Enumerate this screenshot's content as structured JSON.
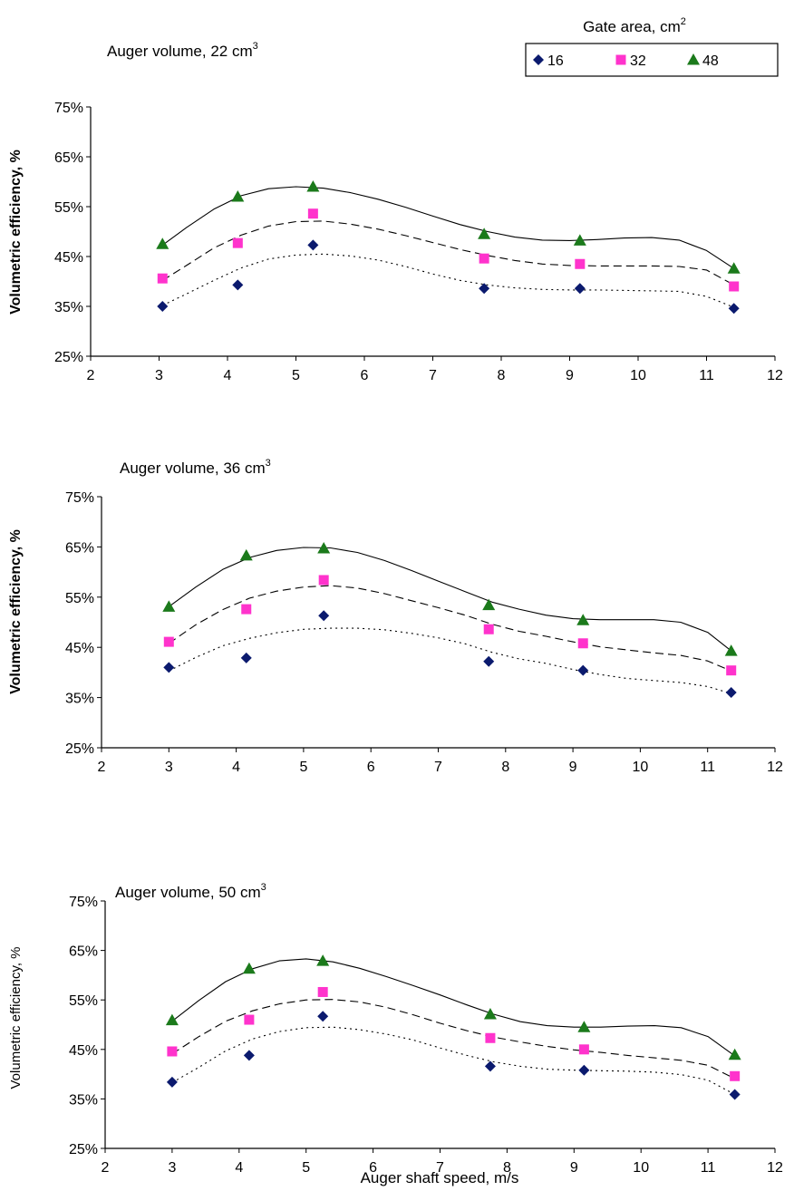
{
  "legend": {
    "title": "Gate area, cm",
    "title_sup": "2",
    "entries": [
      {
        "label": "16",
        "marker": "diamond",
        "color": "#0b1a6e"
      },
      {
        "label": "32",
        "marker": "square",
        "color": "#ff33cc"
      },
      {
        "label": "48",
        "marker": "triangle",
        "color": "#1b7a1b"
      }
    ]
  },
  "chart_data": [
    {
      "type": "scatter",
      "title": "Auger volume, 22 cm",
      "title_sup": "3",
      "xlabel": "",
      "ylabel": "Volumetric efficiency, %",
      "xlim": [
        2,
        12
      ],
      "ylim": [
        25,
        75
      ],
      "x_ticks": [
        "2",
        "3",
        "4",
        "5",
        "6",
        "7",
        "8",
        "9",
        "10",
        "11",
        "12"
      ],
      "y_ticks": [
        "25%",
        "35%",
        "45%",
        "55%",
        "65%",
        "75%"
      ],
      "x": [
        3.05,
        4.15,
        5.25,
        7.75,
        9.15,
        11.4
      ],
      "series": [
        {
          "name": "16",
          "values": [
            35.0,
            39.3,
            47.3,
            38.6,
            38.6,
            34.6
          ]
        },
        {
          "name": "32",
          "values": [
            40.6,
            47.7,
            53.6,
            44.6,
            43.5,
            39.0
          ]
        },
        {
          "name": "48",
          "values": [
            47.5,
            57.0,
            59.0,
            49.5,
            48.2,
            42.6
          ]
        }
      ],
      "trendlines": [
        {
          "series": "16",
          "style": "dotted",
          "x": [
            3.05,
            3.4,
            3.8,
            4.2,
            4.6,
            5.0,
            5.4,
            5.8,
            6.2,
            6.6,
            7.0,
            7.4,
            7.8,
            8.2,
            8.6,
            9.0,
            9.4,
            9.8,
            10.2,
            10.6,
            11.0,
            11.4
          ],
          "y": [
            35.2,
            37.5,
            40.2,
            42.7,
            44.5,
            45.3,
            45.5,
            45.1,
            44.3,
            43.0,
            41.5,
            40.2,
            39.3,
            38.7,
            38.4,
            38.3,
            38.3,
            38.2,
            38.1,
            38.0,
            37.0,
            34.8
          ]
        },
        {
          "series": "32",
          "style": "dashed",
          "x": [
            3.05,
            3.4,
            3.8,
            4.2,
            4.6,
            5.0,
            5.4,
            5.8,
            6.2,
            6.6,
            7.0,
            7.4,
            7.8,
            8.2,
            8.6,
            9.0,
            9.4,
            9.8,
            10.2,
            10.6,
            11.0,
            11.4
          ],
          "y": [
            40.2,
            43.2,
            46.7,
            49.3,
            51.1,
            52.0,
            52.1,
            51.5,
            50.5,
            49.2,
            47.8,
            46.4,
            45.2,
            44.2,
            43.5,
            43.2,
            43.1,
            43.1,
            43.1,
            43.0,
            42.3,
            39.3
          ]
        },
        {
          "series": "48",
          "style": "solid",
          "x": [
            3.05,
            3.4,
            3.8,
            4.2,
            4.6,
            5.0,
            5.4,
            5.8,
            6.2,
            6.6,
            7.0,
            7.4,
            7.8,
            8.2,
            8.6,
            9.0,
            9.4,
            9.8,
            10.2,
            10.6,
            11.0,
            11.4
          ],
          "y": [
            47.3,
            50.8,
            54.5,
            57.2,
            58.6,
            59.0,
            58.7,
            57.8,
            56.5,
            54.9,
            53.1,
            51.4,
            50.0,
            48.9,
            48.3,
            48.2,
            48.4,
            48.7,
            48.8,
            48.3,
            46.2,
            42.6
          ]
        }
      ]
    },
    {
      "type": "scatter",
      "title": "Auger volume, 36 cm",
      "title_sup": "3",
      "xlabel": "",
      "ylabel": "Volumetric efficiency, %",
      "xlim": [
        2,
        12
      ],
      "ylim": [
        25,
        75
      ],
      "x_ticks": [
        "2",
        "3",
        "4",
        "5",
        "6",
        "7",
        "8",
        "9",
        "10",
        "11",
        "12"
      ],
      "y_ticks": [
        "25%",
        "35%",
        "45%",
        "55%",
        "65%",
        "75%"
      ],
      "x": [
        3.0,
        4.15,
        5.3,
        7.75,
        9.15,
        11.35
      ],
      "series": [
        {
          "name": "16",
          "values": [
            41.0,
            42.9,
            51.3,
            42.2,
            40.4,
            36.0
          ]
        },
        {
          "name": "32",
          "values": [
            46.1,
            52.6,
            58.4,
            48.6,
            45.8,
            40.4
          ]
        },
        {
          "name": "48",
          "values": [
            53.1,
            63.3,
            64.7,
            53.4,
            50.4,
            44.3
          ]
        }
      ],
      "trendlines": [
        {
          "series": "16",
          "style": "dotted",
          "x": [
            3.0,
            3.4,
            3.8,
            4.2,
            4.6,
            5.0,
            5.4,
            5.8,
            6.2,
            6.6,
            7.0,
            7.4,
            7.8,
            8.2,
            8.6,
            9.0,
            9.4,
            9.8,
            10.2,
            10.6,
            11.0,
            11.35
          ],
          "y": [
            40.3,
            43.0,
            45.3,
            46.8,
            47.9,
            48.6,
            48.8,
            48.8,
            48.5,
            47.8,
            46.9,
            45.7,
            44.0,
            42.7,
            41.8,
            40.6,
            39.6,
            38.8,
            38.4,
            38.0,
            37.2,
            35.8
          ]
        },
        {
          "series": "32",
          "style": "dashed",
          "x": [
            3.0,
            3.4,
            3.8,
            4.2,
            4.6,
            5.0,
            5.4,
            5.8,
            6.2,
            6.6,
            7.0,
            7.4,
            7.8,
            8.2,
            8.6,
            9.0,
            9.4,
            9.8,
            10.2,
            10.6,
            11.0,
            11.35
          ],
          "y": [
            45.8,
            49.5,
            52.5,
            54.8,
            56.2,
            57.0,
            57.3,
            56.8,
            55.7,
            54.3,
            52.9,
            51.4,
            49.6,
            48.2,
            47.2,
            46.1,
            45.1,
            44.5,
            43.9,
            43.4,
            42.3,
            40.3
          ]
        },
        {
          "series": "48",
          "style": "solid",
          "x": [
            3.0,
            3.4,
            3.8,
            4.2,
            4.6,
            5.0,
            5.4,
            5.8,
            6.2,
            6.6,
            7.0,
            7.4,
            7.8,
            8.2,
            8.6,
            9.0,
            9.4,
            9.8,
            10.2,
            10.6,
            11.0,
            11.35
          ],
          "y": [
            53.1,
            57.0,
            60.5,
            62.9,
            64.3,
            64.9,
            64.8,
            63.9,
            62.3,
            60.3,
            58.2,
            56.1,
            54.0,
            52.6,
            51.4,
            50.7,
            50.5,
            50.5,
            50.5,
            50.0,
            48.0,
            44.3
          ]
        }
      ]
    },
    {
      "type": "scatter",
      "title": "Auger volume, 50 cm",
      "title_sup": "3",
      "xlabel": "Auger shaft speed, m/s",
      "ylabel": "Volumetric efficiency, %",
      "xlim": [
        2,
        12
      ],
      "ylim": [
        25,
        75
      ],
      "x_ticks": [
        "2",
        "3",
        "4",
        "5",
        "6",
        "7",
        "8",
        "9",
        "10",
        "11",
        "12"
      ],
      "y_ticks": [
        "25%",
        "35%",
        "45%",
        "55%",
        "65%",
        "75%"
      ],
      "x": [
        3.0,
        4.15,
        5.25,
        7.75,
        9.15,
        11.4
      ],
      "series": [
        {
          "name": "16",
          "values": [
            38.4,
            43.8,
            51.7,
            41.6,
            40.8,
            35.9
          ]
        },
        {
          "name": "32",
          "values": [
            44.6,
            51.0,
            56.6,
            47.3,
            45.0,
            39.6
          ]
        },
        {
          "name": "48",
          "values": [
            50.9,
            61.3,
            62.9,
            52.1,
            49.5,
            43.9
          ]
        }
      ],
      "trendlines": [
        {
          "series": "16",
          "style": "dotted",
          "x": [
            3.0,
            3.4,
            3.8,
            4.2,
            4.6,
            5.0,
            5.4,
            5.8,
            6.2,
            6.6,
            7.0,
            7.4,
            7.8,
            8.2,
            8.6,
            9.0,
            9.4,
            9.8,
            10.2,
            10.6,
            11.0,
            11.4
          ],
          "y": [
            38.3,
            41.4,
            44.7,
            47.1,
            48.6,
            49.4,
            49.5,
            49.0,
            48.1,
            46.9,
            45.3,
            43.8,
            42.5,
            41.6,
            41.0,
            40.8,
            40.7,
            40.6,
            40.4,
            39.9,
            38.8,
            35.9
          ]
        },
        {
          "series": "32",
          "style": "dashed",
          "x": [
            3.0,
            3.4,
            3.8,
            4.2,
            4.6,
            5.0,
            5.4,
            5.8,
            6.2,
            6.6,
            7.0,
            7.4,
            7.8,
            8.2,
            8.6,
            9.0,
            9.4,
            9.8,
            10.2,
            10.6,
            11.0,
            11.4
          ],
          "y": [
            44.1,
            47.6,
            50.7,
            52.8,
            54.2,
            55.0,
            55.1,
            54.6,
            53.5,
            52.0,
            50.3,
            48.8,
            47.5,
            46.5,
            45.6,
            44.9,
            44.4,
            43.8,
            43.3,
            42.8,
            41.8,
            39.1
          ]
        },
        {
          "series": "48",
          "style": "solid",
          "x": [
            3.0,
            3.4,
            3.8,
            4.2,
            4.6,
            5.0,
            5.4,
            5.8,
            6.2,
            6.6,
            7.0,
            7.4,
            7.8,
            8.2,
            8.6,
            9.0,
            9.4,
            9.8,
            10.2,
            10.6,
            11.0,
            11.4
          ],
          "y": [
            50.7,
            54.9,
            58.7,
            61.3,
            62.9,
            63.3,
            62.7,
            61.4,
            59.7,
            57.9,
            56.0,
            54.0,
            52.1,
            50.6,
            49.8,
            49.5,
            49.5,
            49.7,
            49.8,
            49.4,
            47.6,
            43.7
          ]
        }
      ]
    }
  ]
}
